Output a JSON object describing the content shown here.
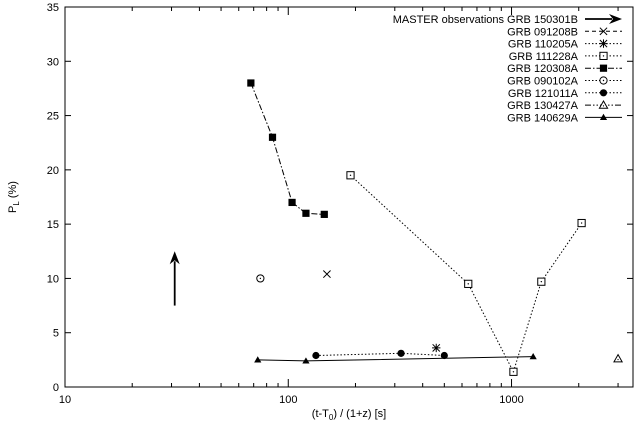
{
  "chart_data": {
    "type": "scatter",
    "xlabel": "(t-T",
    "xlabel_sub": "0",
    "xlabel_rest": ") / (1+z)  [s]",
    "ylabel": "P",
    "ylabel_sub": "L",
    "ylabel_rest": " (%)",
    "xscale": "log",
    "xlim": [
      10,
      3500
    ],
    "ylim": [
      0,
      35
    ],
    "x_ticks": [
      10,
      100,
      1000
    ],
    "x_tick_labels": [
      "10",
      "100",
      "1000"
    ],
    "y_ticks": [
      0,
      5,
      10,
      15,
      20,
      25,
      30,
      35
    ],
    "y_tick_labels": [
      "0",
      "5",
      "10",
      "15",
      "20",
      "25",
      "30",
      "35"
    ],
    "grid": false,
    "legend_position": "top-right",
    "lower_limit_arrow": {
      "name": "MASTER observations GRB 150301B",
      "x": 31,
      "y_from": 7.5,
      "y_to": 12.5
    },
    "series": [
      {
        "name": "GRB 091208B",
        "marker": "x",
        "line": "dashed",
        "points": [
          [
            149,
            10.4
          ]
        ]
      },
      {
        "name": "GRB 110205A",
        "marker": "asterisk",
        "line": "dotted",
        "points": [
          [
            460,
            3.6
          ]
        ]
      },
      {
        "name": "GRB 111228A",
        "marker": "open-square",
        "line": "dotted",
        "points": [
          [
            190,
            19.5
          ],
          [
            640,
            9.5
          ],
          [
            1020,
            1.4
          ],
          [
            1360,
            9.7
          ],
          [
            2060,
            15.1
          ]
        ]
      },
      {
        "name": "GRB 120308A",
        "marker": "filled-square",
        "line": "dashdot",
        "points": [
          [
            68,
            28.0
          ],
          [
            85,
            23.0
          ],
          [
            104,
            17.0
          ],
          [
            120,
            16.0
          ],
          [
            145,
            15.9
          ]
        ]
      },
      {
        "name": "GRB 090102A",
        "marker": "open-circle",
        "line": "dotted",
        "points": [
          [
            75,
            10.0
          ]
        ]
      },
      {
        "name": "GRB 121011A",
        "marker": "filled-circle",
        "line": "dotted",
        "points": [
          [
            133,
            2.9
          ],
          [
            320,
            3.1
          ],
          [
            500,
            2.9
          ]
        ]
      },
      {
        "name": "GRB 130427A",
        "marker": "open-triangle",
        "line": "dashdotdot",
        "points": [
          [
            3000,
            2.6
          ]
        ]
      },
      {
        "name": "GRB 140629A",
        "marker": "filled-triangle",
        "line": "solid",
        "points": [
          [
            73,
            2.5
          ],
          [
            120,
            2.4
          ],
          [
            1250,
            2.8
          ]
        ]
      }
    ]
  }
}
